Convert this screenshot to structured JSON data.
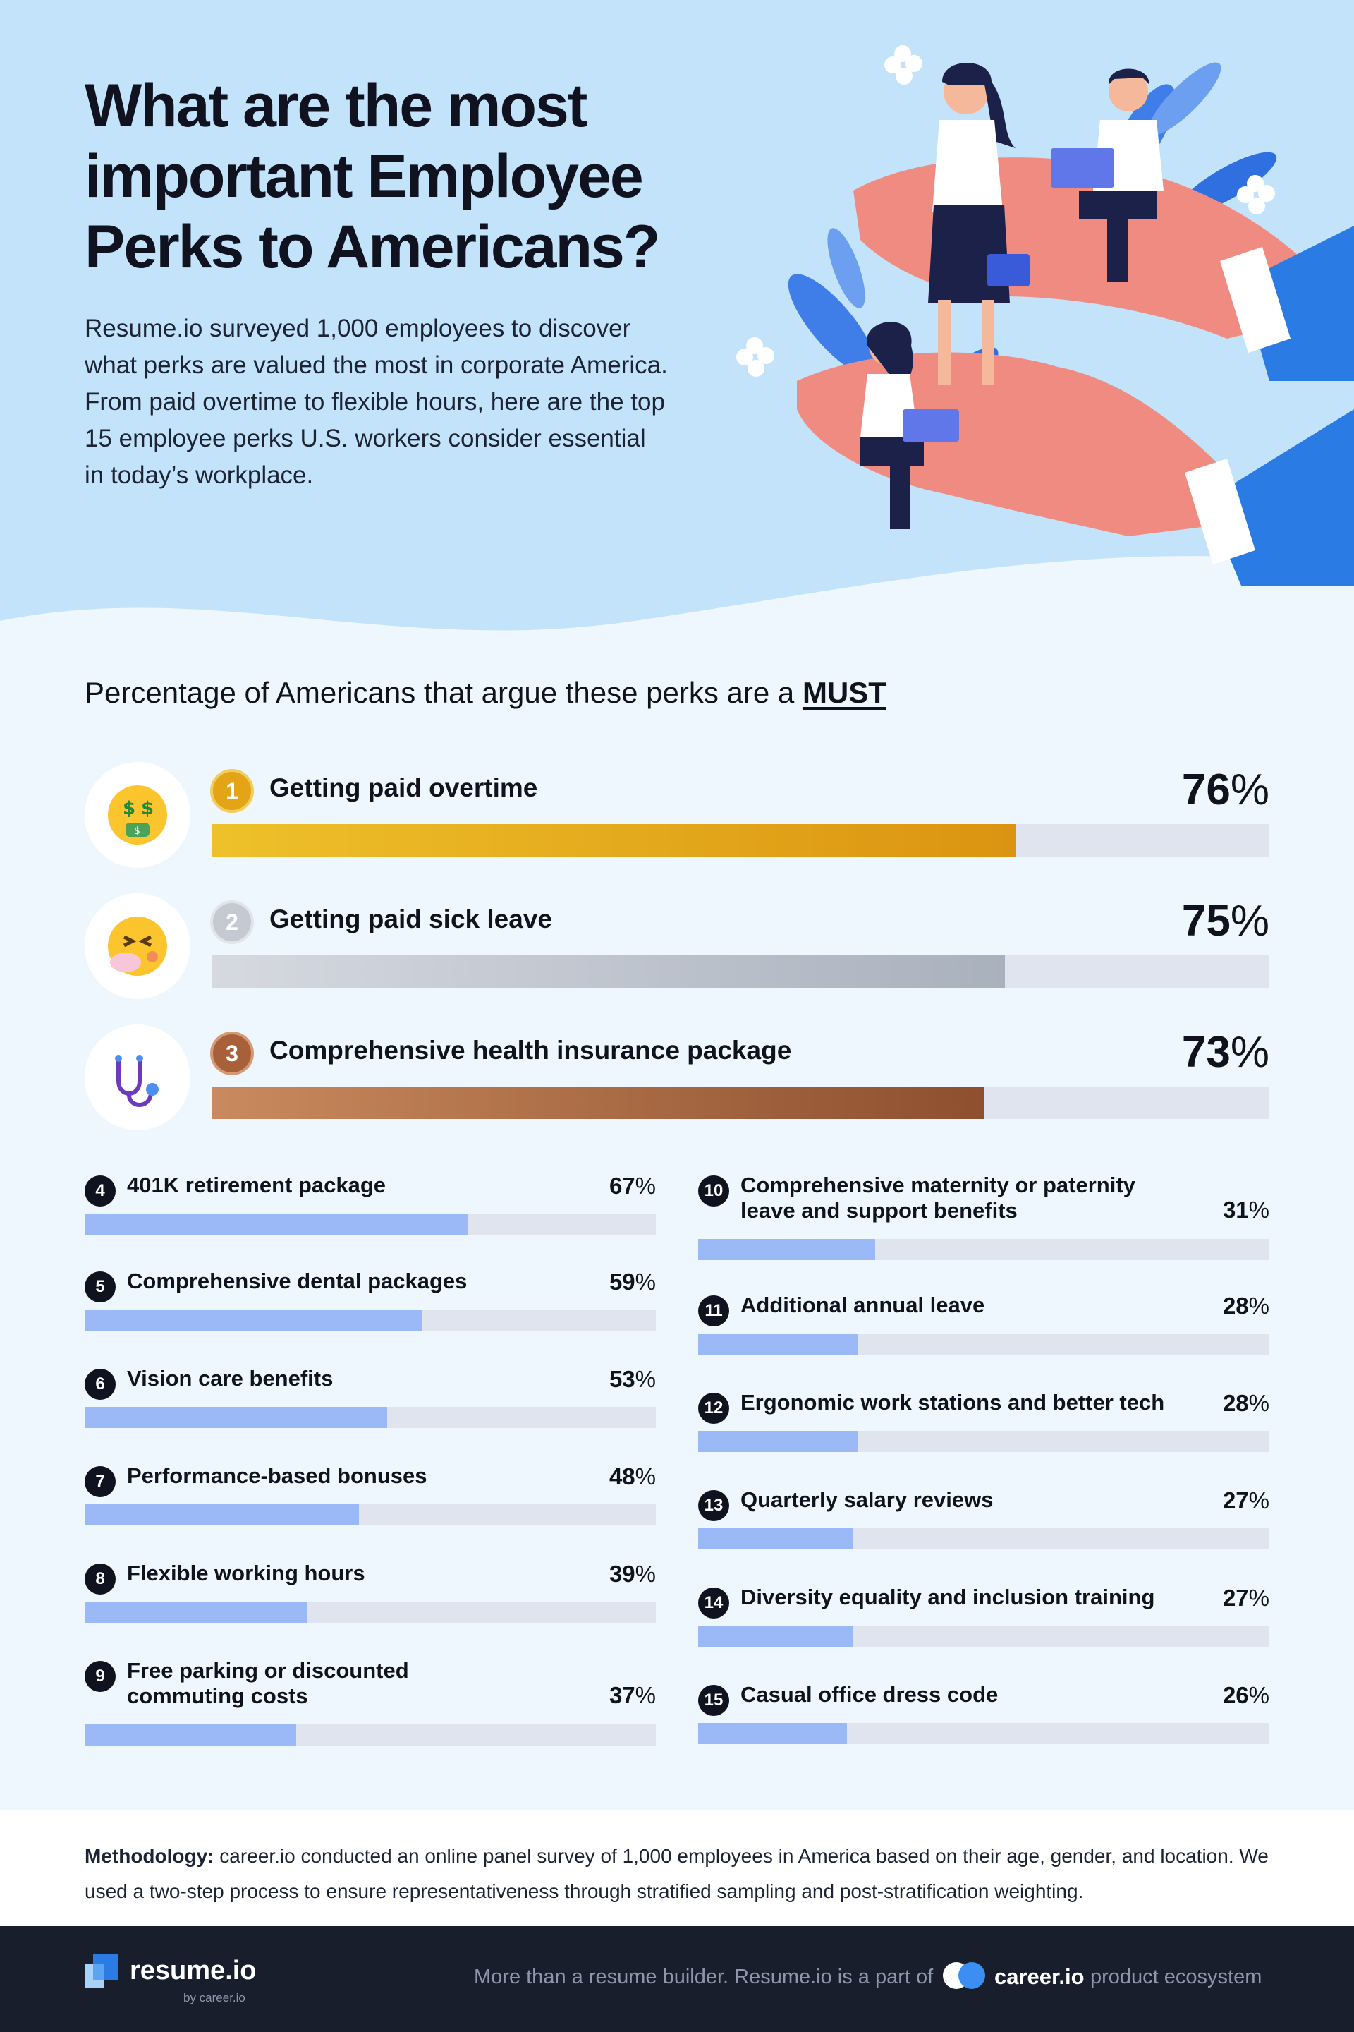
{
  "hero": {
    "title": "What are the most\nimportant Employee\nPerks to Americans?",
    "intro": "Resume.io surveyed 1,000 employees to discover what perks are valued the most in corporate America. From paid overtime to flexible hours, here are the top 15 employee perks U.S. workers consider essential in today’s workplace."
  },
  "chart_data": {
    "type": "bar",
    "title_prefix": "Percentage of Americans that argue these perks are a",
    "title_emphasis": "MUST",
    "unit": "%",
    "xlim": [
      0,
      100
    ],
    "categories": [
      "Getting paid overtime",
      "Getting paid sick leave",
      "Comprehensive health insurance package",
      "401K retirement package",
      "Comprehensive dental packages",
      "Vision care benefits",
      "Performance-based bonuses",
      "Flexible working hours",
      "Free parking or discounted commuting costs",
      "Comprehensive maternity or paternity leave and support benefits",
      "Additional annual leave",
      "Ergonomic work stations and better tech",
      "Quarterly salary reviews",
      "Diversity equality and inclusion training",
      "Casual office dress code"
    ],
    "values": [
      76,
      75,
      73,
      67,
      59,
      53,
      48,
      39,
      37,
      31,
      28,
      28,
      27,
      27,
      26
    ],
    "top_icons": [
      "money-mouth-face-icon",
      "sneezing-face-icon",
      "stethoscope-icon"
    ],
    "colors": {
      "gold": "#e3a416",
      "silver": "#c9cdd6",
      "bronze": "#b36b3e",
      "bar": "#9bb8f7",
      "track": "#dfe4ee"
    }
  },
  "methodology": {
    "label": "Methodology:",
    "text": " career.io conducted an online panel survey of 1,000 employees in America based on their age, gender, and location. We used a two-step process to ensure representativeness through stratified sampling and post-stratification weighting."
  },
  "footer": {
    "logo": "resume.io",
    "logo_sub": "by career.io",
    "tagline": "More than a resume builder. Resume.io is a part of",
    "brand": "career.io",
    "suffix": "product ecosystem"
  }
}
